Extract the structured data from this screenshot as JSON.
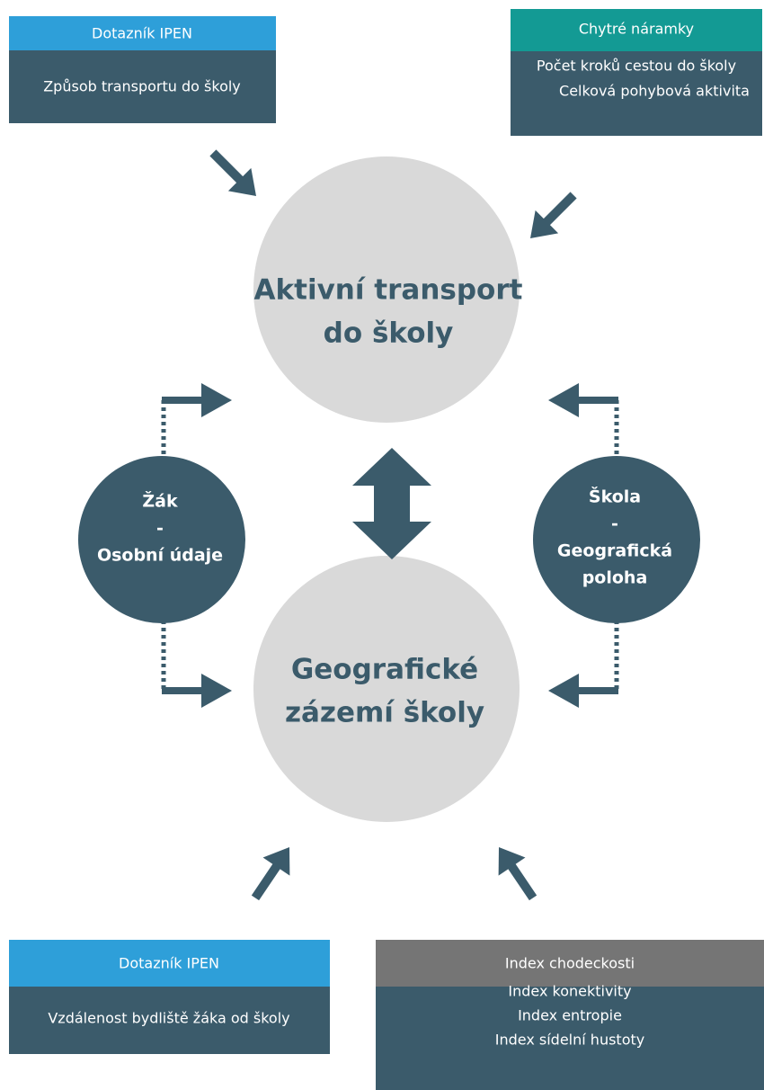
{
  "boxes": [
    {
      "header": "Dotazník IPEN",
      "lines": [
        "Způsob transportu do školy"
      ]
    },
    {
      "header": "Chytré náramky",
      "lines": [
        "Počet kroků cestou do školy",
        "Celková pohybová aktivita"
      ]
    },
    {
      "header": "Dotazník IPEN",
      "lines": [
        "Vzdálenost bydliště žáka od školy"
      ]
    },
    {
      "header": "Index chodeckosti",
      "lines": [
        "Index konektivity",
        "Index entropie",
        "Index sídelní hustoty"
      ]
    }
  ],
  "circles": [
    {
      "lines": [
        "Aktivní transport",
        "do školy"
      ]
    },
    {
      "lines": [
        "Geografické",
        "zázemí školy"
      ]
    },
    {
      "lines": [
        "Žák",
        "-",
        "Osobní údaje"
      ]
    },
    {
      "lines": [
        "Škola",
        "-",
        "Geografická",
        "poloha"
      ]
    }
  ]
}
